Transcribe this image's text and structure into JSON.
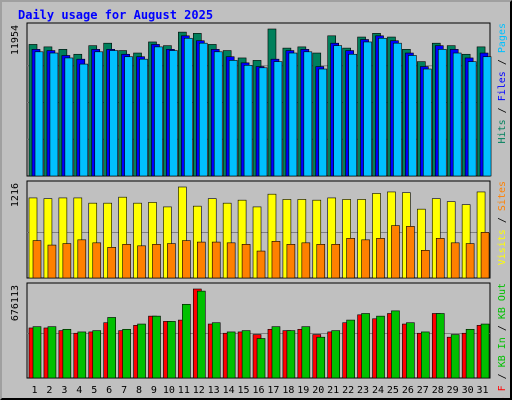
{
  "title": "Daily usage for August 2025",
  "chart_data": {
    "type": "bar",
    "categories": [
      "1",
      "2",
      "3",
      "4",
      "5",
      "6",
      "7",
      "8",
      "9",
      "10",
      "11",
      "12",
      "13",
      "14",
      "15",
      "16",
      "17",
      "18",
      "19",
      "20",
      "21",
      "22",
      "23",
      "24",
      "25",
      "26",
      "27",
      "28",
      "29",
      "30",
      "31"
    ],
    "weekend_days": [
      2,
      3,
      9,
      10,
      16,
      17,
      23,
      24,
      30,
      31
    ],
    "colors": {
      "hits": "#00805c",
      "files": "#0000ff",
      "pages": "#00c0ff",
      "visits": "#ffff00",
      "sites": "#ff8000",
      "kb_in": "#00c000",
      "kb_out": "#00c000",
      "kb_f": "#ff0000",
      "weekend_label": "#00805c",
      "weekday_label": "#000000",
      "title": "#0000ff"
    },
    "panels": [
      {
        "name": "hits-panel",
        "y_max_label": "11954",
        "ymax": 11954,
        "legend": [
          {
            "text": "Hits",
            "color": "#00805c"
          },
          {
            "text": " / ",
            "color": "#000000"
          },
          {
            "text": "Files",
            "color": "#0000ff"
          },
          {
            "text": " / ",
            "color": "#000000"
          },
          {
            "text": "Pages",
            "color": "#00c0ff"
          }
        ],
        "series": [
          {
            "name": "Hits",
            "values": [
              10700,
              10500,
              10300,
              9900,
              10600,
              10800,
              10200,
              10000,
              10900,
              10600,
              11700,
              11600,
              10700,
              10200,
              9600,
              9400,
              11954,
              10400,
              10500,
              10000,
              11400,
              10400,
              11300,
              11600,
              11300,
              10300,
              9300,
              10800,
              10600,
              9900,
              10500
            ]
          },
          {
            "name": "Files",
            "values": [
              10300,
              10200,
              9800,
              9500,
              10300,
              10300,
              9900,
              9700,
              10700,
              10300,
              11400,
              11000,
              10300,
              9700,
              9200,
              8900,
              9500,
              10200,
              10300,
              8900,
              10800,
              10200,
              11100,
              11400,
              11000,
              10000,
              8900,
              10600,
              10300,
              9600,
              10000
            ]
          },
          {
            "name": "Pages",
            "values": [
              10100,
              10000,
              9600,
              9100,
              10100,
              10200,
              9700,
              9500,
              10500,
              10200,
              11200,
              10800,
              10100,
              9400,
              9000,
              8800,
              9300,
              10000,
              10100,
              8700,
              10600,
              9900,
              10900,
              11200,
              10800,
              9800,
              8700,
              10300,
              10000,
              9300,
              9700
            ]
          }
        ]
      },
      {
        "name": "visits-panel",
        "y_max_label": "1216",
        "ymax": 1216,
        "legend": [
          {
            "text": "Visits",
            "color": "#ffff00"
          },
          {
            "text": " / ",
            "color": "#000000"
          },
          {
            "text": "Sites",
            "color": "#ff8000"
          }
        ],
        "series": [
          {
            "name": "Visits",
            "values": [
              1070,
              1060,
              1070,
              1070,
              1000,
              1000,
              1080,
              1000,
              1010,
              950,
              1216,
              960,
              1060,
              1000,
              1040,
              950,
              1120,
              1050,
              1050,
              1040,
              1070,
              1050,
              1050,
              1130,
              1150,
              1140,
              920,
              1060,
              1020,
              980,
              1150
            ]
          },
          {
            "name": "Sites",
            "values": [
              500,
              440,
              460,
              510,
              470,
              410,
              450,
              430,
              450,
              460,
              500,
              480,
              480,
              470,
              450,
              360,
              490,
              450,
              470,
              450,
              450,
              530,
              510,
              530,
              700,
              690,
              370,
              530,
              470,
              460,
              610
            ]
          }
        ]
      },
      {
        "name": "kbytes-panel",
        "y_max_label": "676113",
        "ymax": 676113,
        "legend": [
          {
            "text": "KB F",
            "color": "#ff0000"
          },
          {
            "text": " / ",
            "color": "#000000"
          },
          {
            "text": "KB In",
            "color": "#00c000"
          },
          {
            "text": " / ",
            "color": "#000000"
          },
          {
            "text": "KB Out",
            "color": "#00c000"
          },
          {
            "text": " / ",
            "color": "#000000"
          },
          {
            "text": "KB Out",
            "color": "#00c000"
          }
        ],
        "series": [
          {
            "name": "KB F",
            "values": [
              380000,
              380000,
              360000,
              340000,
              350000,
              420000,
              360000,
              400000,
              470000,
              430000,
              440000,
              676113,
              410000,
              340000,
              350000,
              330000,
              370000,
              360000,
              370000,
              330000,
              350000,
              420000,
              480000,
              450000,
              490000,
              410000,
              340000,
              490000,
              310000,
              340000,
              400000
            ]
          },
          {
            "name": "KB In",
            "values": [
              390000,
              390000,
              370000,
              350000,
              360000,
              460000,
              370000,
              410000,
              470000,
              430000,
              560000,
              660000,
              420000,
              350000,
              360000,
              300000,
              390000,
              360000,
              390000,
              310000,
              360000,
              440000,
              490000,
              470000,
              510000,
              420000,
              350000,
              490000,
              330000,
              370000,
              410000
            ]
          }
        ]
      }
    ],
    "right_legend_text": "KB F / KB In / KB Out / KB Out"
  }
}
